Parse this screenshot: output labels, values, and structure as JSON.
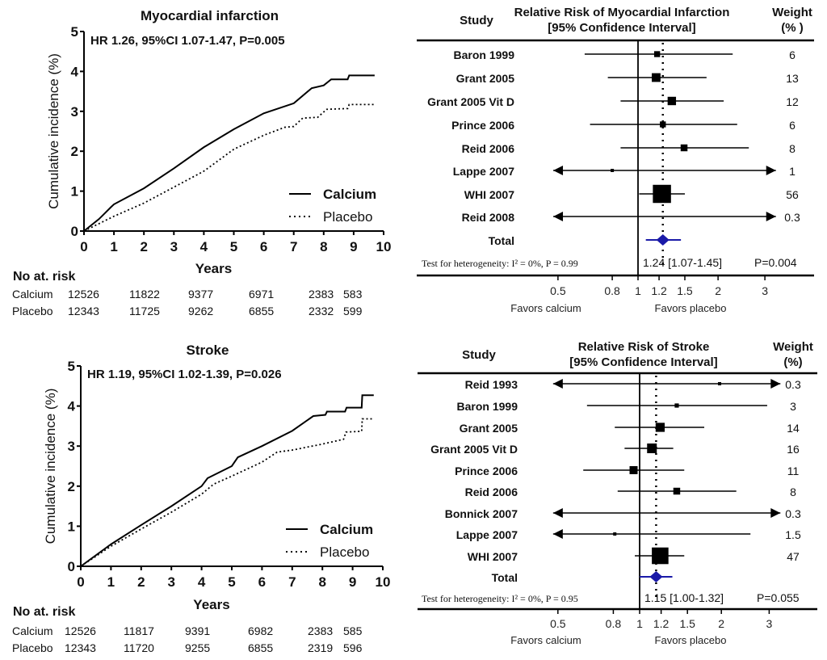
{
  "chart_data": [
    {
      "type": "line",
      "title": "Myocardial infarction",
      "annotation": "HR 1.26, 95%CI 1.07-1.47, P=0.005",
      "xlabel": "Years",
      "ylabel": "Cumulative incidence (%)",
      "xlim": [
        0,
        10
      ],
      "ylim": [
        0,
        5
      ],
      "xticks": [
        "0",
        "1",
        "2",
        "3",
        "4",
        "5",
        "6",
        "7",
        "8",
        "9",
        "10"
      ],
      "yticks": [
        "0",
        "1",
        "2",
        "3",
        "4",
        "5"
      ],
      "legend_position": "bottom-right",
      "series": [
        {
          "name": "Calcium",
          "style": "solid",
          "x": [
            0,
            0.5,
            0.9,
            1,
            2,
            3,
            4,
            5,
            6,
            7,
            7.6,
            8,
            8.25,
            8.8,
            8.85,
            9.7
          ],
          "y": [
            0,
            0.3,
            0.6,
            0.67,
            1.07,
            1.57,
            2.1,
            2.55,
            2.95,
            3.2,
            3.58,
            3.65,
            3.8,
            3.8,
            3.9,
            3.9
          ]
        },
        {
          "name": "Placebo",
          "style": "dotted",
          "x": [
            0,
            1,
            2,
            3,
            4,
            5,
            6,
            6.7,
            7,
            7.3,
            7.8,
            8.1,
            8.8,
            8.85,
            9.7
          ],
          "y": [
            0,
            0.37,
            0.7,
            1.1,
            1.5,
            2.05,
            2.4,
            2.6,
            2.62,
            2.83,
            2.85,
            3.05,
            3.07,
            3.17,
            3.17
          ]
        }
      ],
      "at_risk": {
        "heading": "No at. risk",
        "rows": [
          {
            "label": "Calcium",
            "values": [
              "12526",
              "11822",
              "9377",
              "6971",
              "2383",
              "583"
            ]
          },
          {
            "label": "Placebo",
            "values": [
              "12343",
              "11725",
              "9262",
              "6855",
              "2332",
              "599"
            ]
          }
        ]
      }
    },
    {
      "type": "forest",
      "header": {
        "study": "Study",
        "title_line1": "Relative Risk of  Myocardial Infarction",
        "title_line2": "[95% Confidence Interval]",
        "weight_line1": "Weight",
        "weight_line2": "(% )"
      },
      "xscale": "log",
      "xlim": [
        0.48,
        3.3
      ],
      "xticks": [
        "0.5",
        "0.8",
        "1",
        "1.2",
        "1.5",
        "2",
        "3"
      ],
      "left_label": "Favors calcium",
      "right_label": "Favors placebo",
      "studies": [
        {
          "name": "Baron 1999",
          "rr": 1.18,
          "lo": 0.63,
          "hi": 2.27,
          "weight": "6"
        },
        {
          "name": "Grant 2005",
          "rr": 1.17,
          "lo": 0.77,
          "hi": 1.81,
          "weight": "13"
        },
        {
          "name": "Grant 2005 Vit D",
          "rr": 1.34,
          "lo": 0.86,
          "hi": 2.1,
          "weight": "12"
        },
        {
          "name": "Prince 2006",
          "rr": 1.24,
          "lo": 0.66,
          "hi": 2.36,
          "weight": "6"
        },
        {
          "name": "Reid 2006",
          "rr": 1.49,
          "lo": 0.86,
          "hi": 2.61,
          "weight": "8"
        },
        {
          "name": "Lappe 2007",
          "rr": 0.8,
          "lo": null,
          "hi": null,
          "weight": "1"
        },
        {
          "name": "WHI 2007",
          "rr": 1.23,
          "lo": 1.01,
          "hi": 1.5,
          "weight": "56"
        },
        {
          "name": "Reid 2008",
          "rr": null,
          "lo": null,
          "hi": null,
          "weight": "0.3"
        }
      ],
      "total": {
        "label": "Total",
        "rr": 1.24,
        "lo": 1.07,
        "hi": 1.45,
        "text": "1.24 [1.07-1.45]",
        "p": "P=0.004",
        "color": "#1a1aa8"
      },
      "heterogeneity": "Test for heterogeneity: I² = 0%, P = 0.99"
    },
    {
      "type": "line",
      "title": "Stroke",
      "annotation": "HR 1.19, 95%CI 1.02-1.39, P=0.026",
      "xlabel": "Years",
      "ylabel": "Cumulative incidence (%)",
      "xlim": [
        0,
        10
      ],
      "ylim": [
        0,
        5
      ],
      "xticks": [
        "0",
        "1",
        "2",
        "3",
        "4",
        "5",
        "6",
        "7",
        "8",
        "9",
        "10"
      ],
      "yticks": [
        "0",
        "1",
        "2",
        "3",
        "4",
        "5"
      ],
      "legend_position": "bottom-right",
      "series": [
        {
          "name": "Calcium",
          "style": "solid",
          "x": [
            0,
            1,
            2,
            3,
            4,
            4.2,
            5,
            5.2,
            6,
            7,
            7.7,
            8.1,
            8.15,
            8.75,
            8.8,
            9.3,
            9.32,
            9.7
          ],
          "y": [
            0,
            0.55,
            1.03,
            1.5,
            2.0,
            2.2,
            2.5,
            2.72,
            3.0,
            3.38,
            3.75,
            3.78,
            3.86,
            3.86,
            3.96,
            3.96,
            4.27,
            4.27
          ]
        },
        {
          "name": "Placebo",
          "style": "dotted",
          "x": [
            0,
            1,
            2,
            3,
            4,
            4.4,
            5,
            6,
            6.5,
            7,
            8,
            8.7,
            8.78,
            9.3,
            9.32,
            9.7
          ],
          "y": [
            0,
            0.5,
            0.93,
            1.35,
            1.8,
            2.05,
            2.25,
            2.6,
            2.85,
            2.9,
            3.05,
            3.17,
            3.35,
            3.37,
            3.68,
            3.68
          ]
        }
      ],
      "at_risk": {
        "heading": "No at. risk",
        "rows": [
          {
            "label": "Calcium",
            "values": [
              "12526",
              "11817",
              "9391",
              "6982",
              "2383",
              "585"
            ]
          },
          {
            "label": "Placebo",
            "values": [
              "12343",
              "11720",
              "9255",
              "6855",
              "2319",
              "596"
            ]
          }
        ]
      }
    },
    {
      "type": "forest",
      "header": {
        "study": "Study",
        "title_line1": "Relative Risk of Stroke",
        "title_line2": "[95% Confidence Interval]",
        "weight_line1": "Weight",
        "weight_line2": "(%)"
      },
      "xscale": "log",
      "xlim": [
        0.48,
        3.3
      ],
      "xticks": [
        "0.5",
        "0.8",
        "1",
        "1.2",
        "1.5",
        "2",
        "3"
      ],
      "left_label": "Favors calcium",
      "right_label": "Favors placebo",
      "studies": [
        {
          "name": "Reid 1993",
          "rr": 1.97,
          "lo": null,
          "hi": null,
          "weight": "0.3"
        },
        {
          "name": "Baron 1999",
          "rr": 1.37,
          "lo": 0.64,
          "hi": 2.95,
          "weight": "3"
        },
        {
          "name": "Grant 2005",
          "rr": 1.19,
          "lo": 0.81,
          "hi": 1.73,
          "weight": "14"
        },
        {
          "name": "Grant 2005 Vit D",
          "rr": 1.11,
          "lo": 0.88,
          "hi": 1.33,
          "weight": "16"
        },
        {
          "name": "Prince 2006",
          "rr": 0.95,
          "lo": 0.62,
          "hi": 1.46,
          "weight": "11"
        },
        {
          "name": "Reid 2006",
          "rr": 1.37,
          "lo": 0.83,
          "hi": 2.27,
          "weight": "8"
        },
        {
          "name": "Bonnick 2007",
          "rr": null,
          "lo": null,
          "hi": null,
          "weight": "0.3"
        },
        {
          "name": "Lappe 2007",
          "rr": 0.81,
          "lo": null,
          "hi": 2.56,
          "weight": "1.5"
        },
        {
          "name": "WHI 2007",
          "rr": 1.19,
          "lo": 0.96,
          "hi": 1.46,
          "weight": "47"
        }
      ],
      "total": {
        "label": "Total",
        "rr": 1.15,
        "lo": 1.0,
        "hi": 1.32,
        "text": "1.15 [1.00-1.32]",
        "p": "P=0.055",
        "color": "#1a1aa8"
      },
      "heterogeneity": "Test for heterogeneity: I² = 0%, P = 0.95"
    }
  ]
}
